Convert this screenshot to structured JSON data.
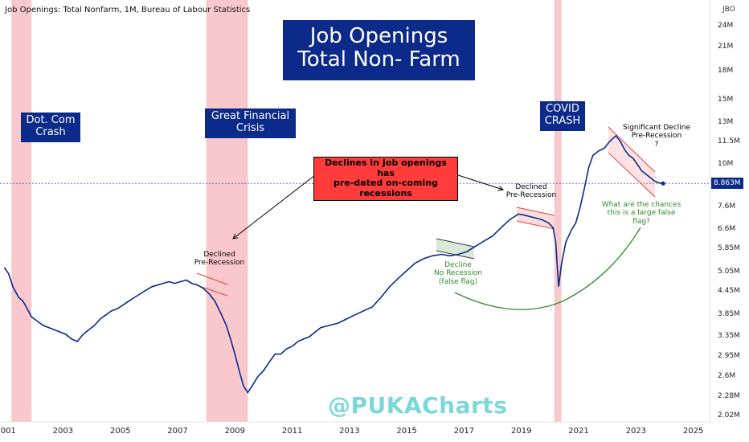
{
  "header": {
    "symbol_title": "Job Openings: Total Nonfarm, 1M, Bureau of Labour Statistics",
    "axis_code": "JBO"
  },
  "watermark": "@PUKACharts",
  "price_tag": "8.863M",
  "colors": {
    "series_line": "#0b2a8a",
    "recession_band": "#f8c8cc",
    "title_box": "#0b2a8a",
    "callout_box": "#ff3b3b",
    "channel_red": "#e84040",
    "channel_green_text": "#2e8b2e",
    "watermark": "#7cd8d8"
  },
  "annotations": {
    "main_title_line1": "Job Openings",
    "main_title_line2": "Total Non- Farm",
    "dotcom_line1": "Dot. Com",
    "dotcom_line2": "Crash",
    "gfc_line1": "Great Financial",
    "gfc_line2": "Crisis",
    "covid_line1": "COVID",
    "covid_line2": "CRASH",
    "callout_line1": "Declines in Job openings has",
    "callout_line2": "pre-dated on-coming recessions",
    "declined1_line1": "Declined",
    "declined1_line2": "Pre-Recession",
    "declined2_line1": "Declined",
    "declined2_line2": "Pre-Recession",
    "decline_nr_line1": "Decline",
    "decline_nr_line2": "No Recession",
    "decline_nr_line3": "(false flag)",
    "sig_line1": "Significant Decline",
    "sig_line2": "Pre-Recession",
    "sig_line3": "?",
    "chances_line1": "What are the chances",
    "chances_line2": "this is a large false flag?"
  },
  "chart_data": {
    "type": "line",
    "title": "Job Openings: Total Nonfarm, 1M, Bureau of Labour Statistics",
    "yscale": "log",
    "ylim": [
      1.95,
      27
    ],
    "xlim": [
      2000.8,
      2025.6
    ],
    "x_ticks": [
      "2001",
      "2003",
      "2005",
      "2007",
      "2009",
      "2011",
      "2013",
      "2015",
      "2017",
      "2019",
      "2021",
      "2023",
      "2025"
    ],
    "y_ticks": [
      "24M",
      "21M",
      "18M",
      "15M",
      "13M",
      "11.5M",
      "10M",
      "8.863M",
      "7.6M",
      "6.6M",
      "5.85M",
      "5.05M",
      "4.45M",
      "3.85M",
      "3.35M",
      "2.95M",
      "2.6M",
      "2.28M",
      "2.02M"
    ],
    "recession_bands": [
      [
        2001.2,
        2001.9
      ],
      [
        2008.0,
        2009.45
      ],
      [
        2020.15,
        2020.4
      ]
    ],
    "series": [
      {
        "name": "",
        "points": [
          [
            2000.95,
            5.2
          ],
          [
            2001.1,
            5.0
          ],
          [
            2001.25,
            4.6
          ],
          [
            2001.45,
            4.3
          ],
          [
            2001.6,
            4.2
          ],
          [
            2001.75,
            4.0
          ],
          [
            2001.9,
            3.8
          ],
          [
            2002.1,
            3.7
          ],
          [
            2002.3,
            3.6
          ],
          [
            2002.5,
            3.55
          ],
          [
            2002.7,
            3.5
          ],
          [
            2002.9,
            3.45
          ],
          [
            2003.1,
            3.4
          ],
          [
            2003.3,
            3.3
          ],
          [
            2003.5,
            3.25
          ],
          [
            2003.7,
            3.4
          ],
          [
            2003.9,
            3.5
          ],
          [
            2004.1,
            3.6
          ],
          [
            2004.3,
            3.75
          ],
          [
            2004.5,
            3.85
          ],
          [
            2004.7,
            3.95
          ],
          [
            2004.9,
            4.0
          ],
          [
            2005.1,
            4.1
          ],
          [
            2005.3,
            4.2
          ],
          [
            2005.5,
            4.3
          ],
          [
            2005.7,
            4.4
          ],
          [
            2005.9,
            4.5
          ],
          [
            2006.1,
            4.6
          ],
          [
            2006.3,
            4.65
          ],
          [
            2006.5,
            4.7
          ],
          [
            2006.7,
            4.75
          ],
          [
            2006.9,
            4.7
          ],
          [
            2007.1,
            4.75
          ],
          [
            2007.3,
            4.8
          ],
          [
            2007.5,
            4.7
          ],
          [
            2007.7,
            4.65
          ],
          [
            2007.9,
            4.55
          ],
          [
            2008.1,
            4.4
          ],
          [
            2008.3,
            4.2
          ],
          [
            2008.5,
            3.9
          ],
          [
            2008.7,
            3.6
          ],
          [
            2008.85,
            3.3
          ],
          [
            2009.0,
            3.0
          ],
          [
            2009.15,
            2.7
          ],
          [
            2009.3,
            2.45
          ],
          [
            2009.45,
            2.35
          ],
          [
            2009.6,
            2.45
          ],
          [
            2009.8,
            2.6
          ],
          [
            2010.0,
            2.7
          ],
          [
            2010.2,
            2.85
          ],
          [
            2010.4,
            3.0
          ],
          [
            2010.6,
            3.0
          ],
          [
            2010.8,
            3.1
          ],
          [
            2011.0,
            3.15
          ],
          [
            2011.2,
            3.25
          ],
          [
            2011.4,
            3.3
          ],
          [
            2011.6,
            3.35
          ],
          [
            2011.8,
            3.45
          ],
          [
            2012.0,
            3.55
          ],
          [
            2012.3,
            3.6
          ],
          [
            2012.6,
            3.65
          ],
          [
            2012.9,
            3.75
          ],
          [
            2013.2,
            3.85
          ],
          [
            2013.5,
            3.95
          ],
          [
            2013.8,
            4.05
          ],
          [
            2014.1,
            4.3
          ],
          [
            2014.4,
            4.6
          ],
          [
            2014.7,
            4.85
          ],
          [
            2015.0,
            5.1
          ],
          [
            2015.3,
            5.35
          ],
          [
            2015.6,
            5.5
          ],
          [
            2015.9,
            5.6
          ],
          [
            2016.2,
            5.65
          ],
          [
            2016.5,
            5.6
          ],
          [
            2016.8,
            5.65
          ],
          [
            2017.1,
            5.75
          ],
          [
            2017.4,
            5.95
          ],
          [
            2017.7,
            6.15
          ],
          [
            2018.0,
            6.35
          ],
          [
            2018.3,
            6.7
          ],
          [
            2018.6,
            7.05
          ],
          [
            2018.9,
            7.3
          ],
          [
            2019.1,
            7.25
          ],
          [
            2019.4,
            7.15
          ],
          [
            2019.7,
            7.05
          ],
          [
            2019.95,
            6.9
          ],
          [
            2020.1,
            6.7
          ],
          [
            2020.2,
            6.1
          ],
          [
            2020.3,
            4.6
          ],
          [
            2020.4,
            5.3
          ],
          [
            2020.55,
            6.1
          ],
          [
            2020.75,
            6.6
          ],
          [
            2020.9,
            6.9
          ],
          [
            2021.05,
            7.6
          ],
          [
            2021.2,
            8.6
          ],
          [
            2021.35,
            9.8
          ],
          [
            2021.5,
            10.6
          ],
          [
            2021.7,
            10.9
          ],
          [
            2021.9,
            11.1
          ],
          [
            2022.05,
            11.5
          ],
          [
            2022.2,
            11.8
          ],
          [
            2022.3,
            12.0
          ],
          [
            2022.45,
            11.6
          ],
          [
            2022.6,
            11.0
          ],
          [
            2022.75,
            10.6
          ],
          [
            2022.9,
            10.4
          ],
          [
            2023.05,
            10.0
          ],
          [
            2023.2,
            9.6
          ],
          [
            2023.35,
            9.4
          ],
          [
            2023.5,
            9.2
          ],
          [
            2023.65,
            9.0
          ],
          [
            2023.8,
            8.9
          ],
          [
            2023.95,
            8.863
          ]
        ]
      }
    ]
  }
}
